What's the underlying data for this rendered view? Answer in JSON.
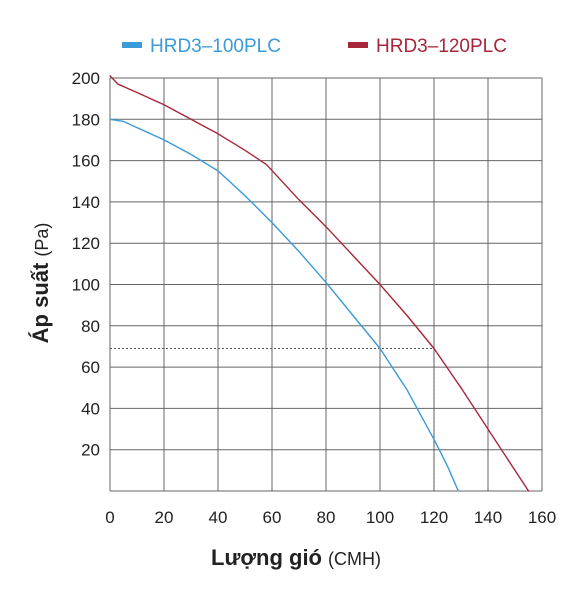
{
  "chart_data": {
    "type": "line",
    "title": "",
    "xlabel": "Lượng gió",
    "xlabel_unit": "(CMH)",
    "ylabel": "Áp suất",
    "ylabel_unit": "(Pa)",
    "xlim": [
      0,
      160
    ],
    "ylim": [
      0,
      200
    ],
    "x_ticks": [
      0,
      20,
      40,
      60,
      80,
      100,
      120,
      140,
      160
    ],
    "y_ticks": [
      20,
      40,
      60,
      80,
      100,
      120,
      140,
      160,
      180,
      200
    ],
    "grid": true,
    "legend_position": "top",
    "series": [
      {
        "name": "HRD3–100PLC",
        "color": "#3b9ad9",
        "x": [
          0,
          5,
          10,
          20,
          30,
          40,
          50,
          60,
          70,
          80,
          90,
          100,
          110,
          120,
          125,
          129
        ],
        "y": [
          180,
          179,
          176,
          170,
          163,
          155,
          143,
          130,
          116,
          101,
          85,
          69,
          49,
          25,
          12,
          0
        ]
      },
      {
        "name": "HRD3–120PLC",
        "color": "#a8263a",
        "x": [
          0,
          3,
          10,
          20,
          30,
          40,
          50,
          58,
          70,
          80,
          90,
          100,
          110,
          120,
          130,
          140,
          150,
          155
        ],
        "y": [
          201,
          197,
          193,
          187,
          180,
          173,
          165,
          158,
          141,
          128,
          114,
          100,
          85,
          69,
          50,
          30,
          10,
          0
        ]
      }
    ],
    "reference_lines": [
      {
        "type": "horizontal",
        "y": 69,
        "from_x": 0,
        "to_x": 120,
        "style": "dotted"
      },
      {
        "type": "vertical",
        "x": 120,
        "from_y": 0,
        "to_y": 69,
        "style": "dotted"
      }
    ]
  }
}
